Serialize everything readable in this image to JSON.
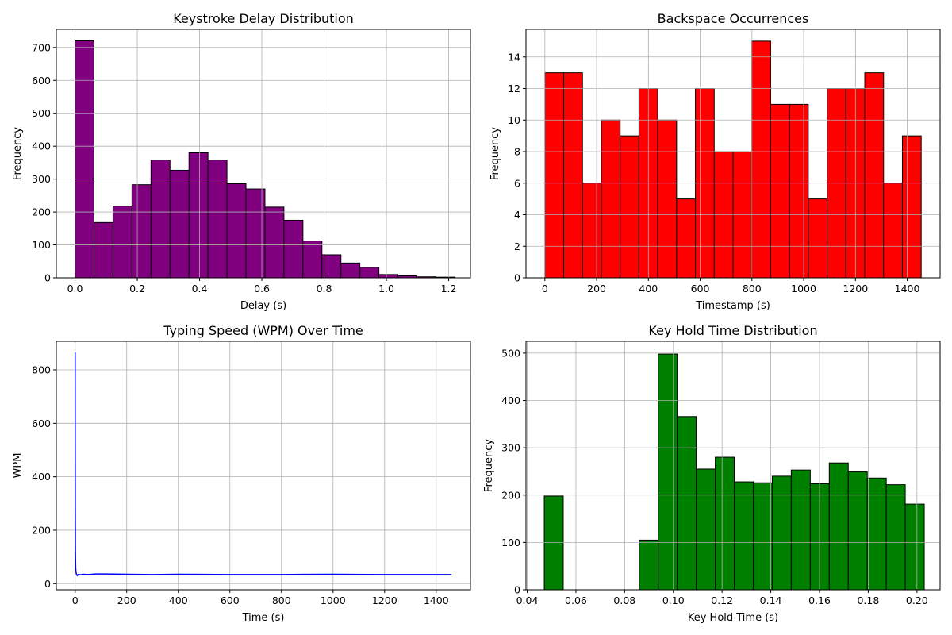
{
  "chart_data": [
    {
      "type": "bar",
      "title": "Keystroke Delay Distribution",
      "xlabel": "Delay (s)",
      "ylabel": "Frequency",
      "bar_color": "#800080",
      "edge_color": "#000000",
      "grid": true,
      "xlim": [
        -0.06,
        1.27
      ],
      "ylim": [
        0,
        755
      ],
      "xticks": [
        0.0,
        0.2,
        0.4,
        0.6,
        0.8,
        1.0,
        1.2
      ],
      "xtick_labels": [
        "0.0",
        "0.2",
        "0.4",
        "0.6",
        "0.8",
        "1.0",
        "1.2"
      ],
      "yticks": [
        0,
        100,
        200,
        300,
        400,
        500,
        600,
        700
      ],
      "ytick_labels": [
        "0",
        "100",
        "200",
        "300",
        "400",
        "500",
        "600",
        "700"
      ],
      "bin_edges": [
        0.0,
        0.061,
        0.122,
        0.183,
        0.244,
        0.305,
        0.366,
        0.427,
        0.488,
        0.549,
        0.61,
        0.671,
        0.732,
        0.793,
        0.854,
        0.915,
        0.976,
        1.037,
        1.098,
        1.159,
        1.22
      ],
      "values": [
        720,
        168,
        218,
        283,
        358,
        327,
        380,
        358,
        286,
        270,
        215,
        175,
        112,
        70,
        45,
        32,
        10,
        6,
        3,
        2
      ]
    },
    {
      "type": "bar",
      "title": "Backspace Occurrences",
      "xlabel": "Timestamp (s)",
      "ylabel": "Frequency",
      "bar_color": "#ff0000",
      "edge_color": "#000000",
      "grid": true,
      "xlim": [
        -73,
        1527
      ],
      "ylim": [
        0,
        15.75
      ],
      "xticks": [
        0,
        200,
        400,
        600,
        800,
        1000,
        1200,
        1400
      ],
      "xtick_labels": [
        "0",
        "200",
        "400",
        "600",
        "800",
        "1000",
        "1200",
        "1400"
      ],
      "yticks": [
        0,
        2,
        4,
        6,
        8,
        10,
        12,
        14
      ],
      "ytick_labels": [
        "0",
        "2",
        "4",
        "6",
        "8",
        "10",
        "12",
        "14"
      ],
      "bin_edges": [
        0,
        72.7,
        145.4,
        218.1,
        290.8,
        363.5,
        436.2,
        508.9,
        581.6,
        654.3,
        727,
        799.7,
        872.4,
        945.1,
        1017.8,
        1090.5,
        1163.2,
        1235.9,
        1308.6,
        1381.3,
        1454
      ],
      "values": [
        13,
        13,
        6,
        10,
        9,
        12,
        10,
        5,
        12,
        8,
        8,
        15,
        11,
        11,
        5,
        12,
        12,
        13,
        6,
        9
      ]
    },
    {
      "type": "line",
      "title": "Typing Speed (WPM) Over Time",
      "xlabel": "Time (s)",
      "ylabel": "WPM",
      "line_color": "#0000ff",
      "grid": true,
      "xlim": [
        -73,
        1533
      ],
      "ylim": [
        -23,
        907
      ],
      "xticks": [
        0,
        200,
        400,
        600,
        800,
        1000,
        1200,
        1400
      ],
      "xtick_labels": [
        "0",
        "200",
        "400",
        "600",
        "800",
        "1000",
        "1200",
        "1400"
      ],
      "yticks": [
        0,
        200,
        400,
        600,
        800
      ],
      "ytick_labels": [
        "0",
        "200",
        "400",
        "600",
        "800"
      ],
      "x": [
        0,
        0.5,
        1,
        2,
        3,
        5,
        8,
        12,
        20,
        30,
        50,
        80,
        120,
        200,
        300,
        400,
        600,
        800,
        1000,
        1200,
        1460
      ],
      "y": [
        865,
        300,
        120,
        60,
        45,
        35,
        30,
        34,
        33,
        35,
        34,
        36,
        36,
        35,
        34,
        35,
        34,
        34,
        35,
        34,
        34
      ]
    },
    {
      "type": "bar",
      "title": "Key Hold Time Distribution",
      "xlabel": "Key Hold Time (s)",
      "ylabel": "Frequency",
      "bar_color": "#008000",
      "edge_color": "#000000",
      "grid": true,
      "xlim": [
        0.0395,
        0.2095
      ],
      "ylim": [
        0,
        525
      ],
      "xticks": [
        0.04,
        0.06,
        0.08,
        0.1,
        0.12,
        0.14,
        0.16,
        0.18,
        0.2
      ],
      "xtick_labels": [
        "0.04",
        "0.06",
        "0.08",
        "0.10",
        "0.12",
        "0.14",
        "0.16",
        "0.18",
        "0.20"
      ],
      "yticks": [
        0,
        100,
        200,
        300,
        400,
        500
      ],
      "ytick_labels": [
        "0",
        "100",
        "200",
        "300",
        "400",
        "500"
      ],
      "bin_edges": [
        0.047,
        0.0548,
        0.0626,
        0.0704,
        0.0782,
        0.086,
        0.0938,
        0.1016,
        0.1094,
        0.1172,
        0.125,
        0.1328,
        0.1406,
        0.1484,
        0.1562,
        0.164,
        0.1718,
        0.1796,
        0.1874,
        0.1952,
        0.203
      ],
      "values": [
        198,
        0,
        0,
        0,
        0,
        105,
        498,
        366,
        255,
        280,
        228,
        226,
        240,
        253,
        224,
        268,
        249,
        236,
        222,
        181
      ]
    }
  ]
}
